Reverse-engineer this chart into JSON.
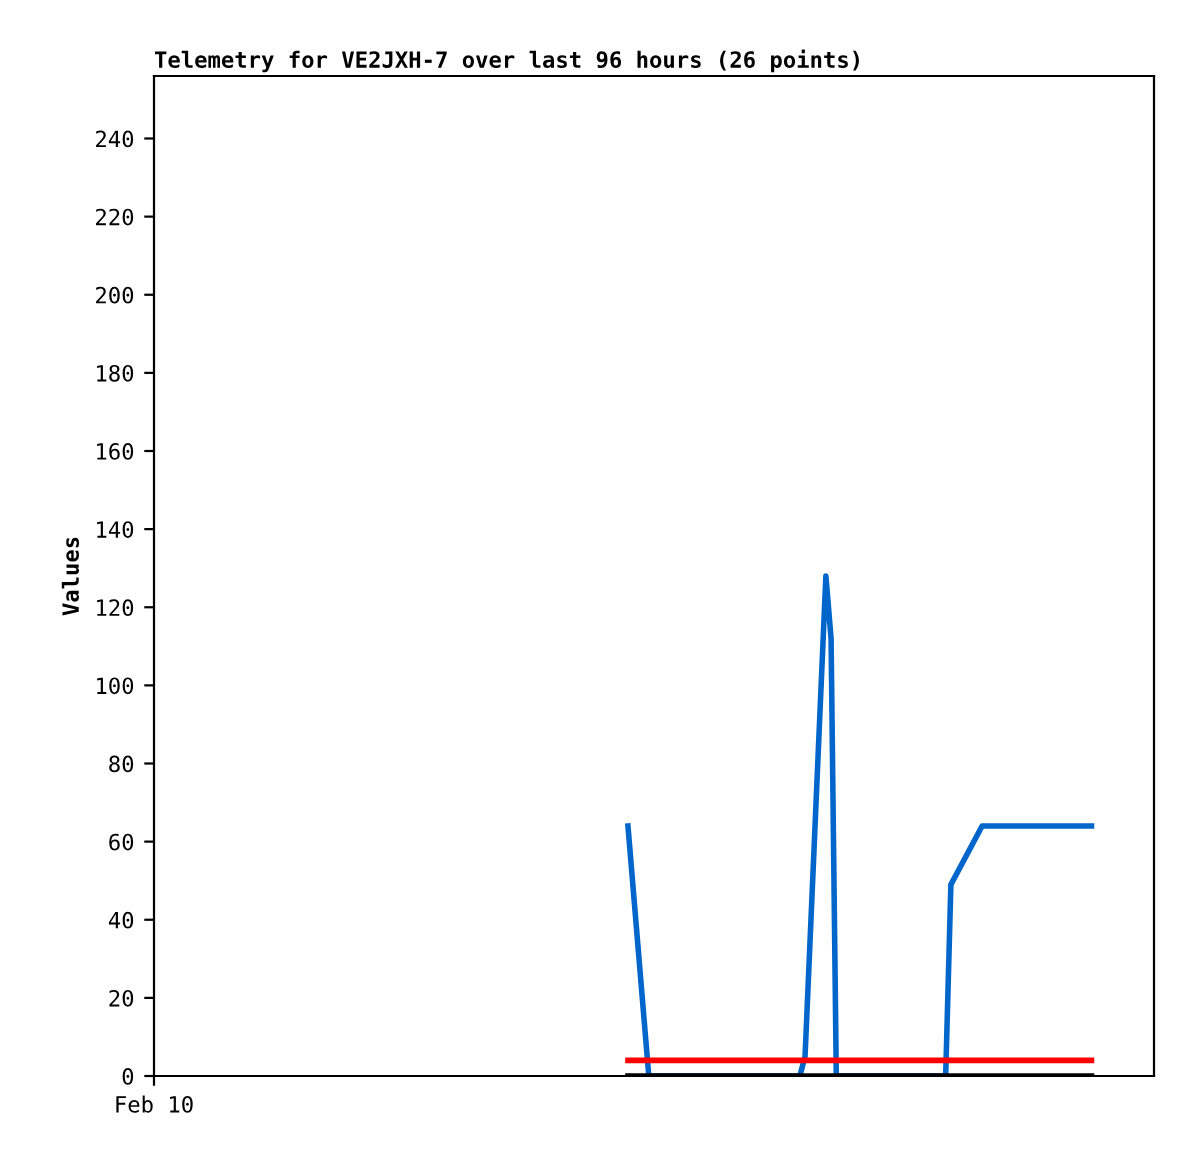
{
  "chart_data": {
    "type": "line",
    "title": "Telemetry for VE2JXH-7 over last 96 hours (26 points)",
    "ylabel": "Values",
    "categories": [
      "Feb 10",
      null,
      null,
      null,
      null,
      null,
      null,
      null,
      null,
      null,
      null,
      null,
      null,
      null,
      null,
      null,
      null,
      null,
      null,
      null,
      null,
      null,
      null,
      null,
      null,
      null,
      null,
      null,
      null,
      null,
      null,
      null,
      null,
      null,
      null,
      null,
      null,
      null,
      null,
      null,
      null,
      null,
      null,
      null,
      null,
      null,
      null,
      null,
      null,
      null,
      null,
      null,
      null,
      null,
      null,
      null,
      null,
      null,
      null,
      null,
      null,
      null,
      null,
      null,
      null,
      null,
      null,
      null,
      null,
      null,
      null,
      null,
      null,
      null,
      null,
      null,
      null,
      null,
      null,
      null,
      null,
      null,
      null,
      null,
      null,
      null,
      null,
      null,
      null,
      null,
      null,
      null,
      null,
      null,
      null,
      null,
      null,
      null,
      null,
      null,
      null,
      null,
      null,
      null,
      null,
      null,
      null,
      null,
      null,
      null,
      null,
      null,
      null,
      null,
      null,
      null,
      null,
      null,
      null,
      null,
      null,
      null,
      null,
      null,
      null,
      null,
      null,
      null,
      null,
      null,
      null,
      null,
      null,
      null,
      null,
      null,
      null,
      null,
      null,
      null,
      null,
      null,
      null,
      null,
      null,
      null,
      null,
      null,
      null,
      null,
      null,
      null,
      null,
      null,
      null,
      null,
      null,
      null,
      null,
      null,
      null,
      null,
      null,
      null,
      null,
      null,
      null,
      null,
      null,
      null,
      null,
      null,
      null,
      null,
      null,
      null,
      null,
      null,
      null,
      null,
      null,
      null,
      null,
      null,
      null,
      null,
      null,
      null,
      null,
      null,
      null,
      null,
      null
    ],
    "ylim": [
      0,
      256
    ],
    "yticks": [
      0,
      20,
      40,
      60,
      80,
      100,
      120,
      140,
      160,
      180,
      200,
      220,
      240
    ],
    "grid": false,
    "legend": false,
    "marker": "none",
    "line_style": "solid",
    "series": [
      {
        "color": "#0066cc",
        "values": [
          null,
          null,
          null,
          null,
          null,
          null,
          null,
          null,
          null,
          null,
          null,
          null,
          null,
          null,
          null,
          null,
          null,
          null,
          null,
          null,
          null,
          null,
          null,
          null,
          null,
          null,
          null,
          null,
          null,
          null,
          null,
          null,
          null,
          null,
          null,
          null,
          null,
          null,
          null,
          null,
          null,
          null,
          null,
          null,
          null,
          null,
          null,
          null,
          null,
          null,
          null,
          null,
          null,
          null,
          null,
          null,
          null,
          null,
          null,
          null,
          null,
          null,
          null,
          null,
          null,
          null,
          null,
          null,
          null,
          null,
          null,
          null,
          null,
          null,
          null,
          null,
          null,
          null,
          null,
          null,
          null,
          null,
          null,
          null,
          null,
          null,
          null,
          null,
          null,
          null,
          null,
          64,
          null,
          null,
          null,
          0,
          null,
          null,
          null,
          null,
          null,
          null,
          null,
          null,
          null,
          null,
          null,
          null,
          null,
          null,
          null,
          null,
          null,
          null,
          null,
          null,
          null,
          null,
          null,
          null,
          null,
          null,
          null,
          null,
          0,
          5,
          null,
          null,
          null,
          128,
          112,
          0,
          null,
          null,
          null,
          null,
          null,
          null,
          null,
          null,
          null,
          null,
          null,
          null,
          null,
          null,
          null,
          null,
          null,
          null,
          null,
          null,
          0,
          49,
          null,
          null,
          null,
          null,
          null,
          64,
          null,
          null,
          null,
          null,
          null,
          null,
          null,
          null,
          null,
          null,
          null,
          null,
          null,
          null,
          null,
          null,
          null,
          null,
          null,
          null,
          64,
          null,
          null,
          null,
          null,
          null,
          null,
          null,
          null,
          null,
          null,
          null,
          null
        ]
      },
      {
        "color": "#ff0000",
        "values": [
          null,
          null,
          null,
          null,
          null,
          null,
          null,
          null,
          null,
          null,
          null,
          null,
          null,
          null,
          null,
          null,
          null,
          null,
          null,
          null,
          null,
          null,
          null,
          null,
          null,
          null,
          null,
          null,
          null,
          null,
          null,
          null,
          null,
          null,
          null,
          null,
          null,
          null,
          null,
          null,
          null,
          null,
          null,
          null,
          null,
          null,
          null,
          null,
          null,
          null,
          null,
          null,
          null,
          null,
          null,
          null,
          null,
          null,
          null,
          null,
          null,
          null,
          null,
          null,
          null,
          null,
          null,
          null,
          null,
          null,
          null,
          null,
          null,
          null,
          null,
          null,
          null,
          null,
          null,
          null,
          null,
          null,
          null,
          null,
          null,
          null,
          null,
          null,
          null,
          null,
          null,
          4,
          null,
          null,
          null,
          null,
          null,
          null,
          null,
          null,
          null,
          null,
          null,
          null,
          null,
          null,
          null,
          null,
          null,
          null,
          null,
          null,
          null,
          null,
          null,
          null,
          null,
          null,
          null,
          null,
          null,
          null,
          null,
          null,
          null,
          null,
          null,
          null,
          null,
          null,
          null,
          null,
          null,
          null,
          null,
          null,
          null,
          null,
          null,
          null,
          null,
          null,
          null,
          null,
          null,
          null,
          null,
          null,
          null,
          null,
          null,
          null,
          null,
          null,
          null,
          null,
          null,
          null,
          null,
          null,
          null,
          null,
          null,
          null,
          null,
          null,
          null,
          null,
          null,
          null,
          null,
          null,
          null,
          null,
          null,
          null,
          null,
          null,
          null,
          null,
          4,
          null,
          null,
          null,
          null,
          null,
          null,
          null,
          null,
          null,
          null,
          null,
          null
        ]
      },
      {
        "color": "#000000",
        "values": [
          null,
          null,
          null,
          null,
          null,
          null,
          null,
          null,
          null,
          null,
          null,
          null,
          null,
          null,
          null,
          null,
          null,
          null,
          null,
          null,
          null,
          null,
          null,
          null,
          null,
          null,
          null,
          null,
          null,
          null,
          null,
          null,
          null,
          null,
          null,
          null,
          null,
          null,
          null,
          null,
          null,
          null,
          null,
          null,
          null,
          null,
          null,
          null,
          null,
          null,
          null,
          null,
          null,
          null,
          null,
          null,
          null,
          null,
          null,
          null,
          null,
          null,
          null,
          null,
          null,
          null,
          null,
          null,
          null,
          null,
          null,
          null,
          null,
          null,
          null,
          null,
          null,
          null,
          null,
          null,
          null,
          null,
          null,
          null,
          null,
          null,
          null,
          null,
          null,
          null,
          null,
          0,
          null,
          null,
          null,
          null,
          null,
          null,
          null,
          null,
          null,
          null,
          null,
          null,
          null,
          null,
          null,
          null,
          null,
          null,
          null,
          null,
          null,
          null,
          null,
          null,
          null,
          null,
          null,
          null,
          null,
          null,
          null,
          null,
          null,
          null,
          null,
          null,
          null,
          null,
          null,
          null,
          null,
          null,
          null,
          null,
          null,
          null,
          null,
          null,
          null,
          null,
          null,
          null,
          null,
          null,
          null,
          null,
          null,
          null,
          null,
          null,
          null,
          null,
          null,
          null,
          null,
          null,
          null,
          null,
          null,
          null,
          null,
          null,
          null,
          null,
          null,
          null,
          null,
          null,
          null,
          null,
          null,
          null,
          null,
          null,
          null,
          null,
          null,
          null,
          0,
          null,
          null,
          null,
          null,
          null,
          null,
          null,
          null,
          null,
          null,
          null,
          null
        ]
      }
    ]
  }
}
